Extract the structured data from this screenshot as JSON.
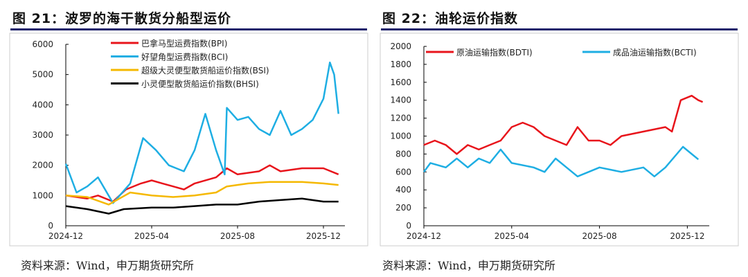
{
  "left": {
    "title": "图 21：波罗的海干散货分船型运价",
    "source": "资料来源：Wind，申万期货研究所"
  },
  "right": {
    "title": "图 22：油轮运价指数",
    "source": "资料来源：Wind，申万期货研究所"
  },
  "chart_data": [
    {
      "type": "line",
      "ylim": [
        0,
        6000
      ],
      "yticks": [
        "0",
        "1000",
        "2000",
        "3000",
        "4000",
        "5000",
        "6000"
      ],
      "xticks": [
        "2024-12",
        "2025-04",
        "2025-08",
        "2025-12"
      ],
      "x_unit": "months since 2024-12",
      "series": [
        {
          "name": "巴拿马型运费指数(BPI)",
          "color": "#e8141b",
          "x": [
            0,
            1,
            1.5,
            2.2,
            2.8,
            3.5,
            4,
            4.5,
            5,
            5.5,
            6,
            7,
            7.5,
            8,
            9,
            9.5,
            10,
            11,
            12,
            12.7
          ],
          "y": [
            1000,
            900,
            1000,
            800,
            1200,
            1400,
            1500,
            1400,
            1300,
            1200,
            1400,
            1600,
            1900,
            1700,
            1800,
            2000,
            1800,
            1900,
            1900,
            1700
          ]
        },
        {
          "name": "好望角型运费指数(BCI)",
          "color": "#1eaee3",
          "x": [
            0,
            0.5,
            1,
            1.5,
            2.2,
            3,
            3.6,
            4.2,
            4.8,
            5.5,
            6,
            6.5,
            7,
            7.4,
            7.5,
            8,
            8.5,
            9,
            9.5,
            10,
            10.5,
            11,
            11.5,
            12,
            12.3,
            12.5,
            12.7
          ],
          "y": [
            2050,
            1100,
            1300,
            1600,
            750,
            1400,
            2900,
            2500,
            2000,
            1800,
            2500,
            3700,
            2500,
            1700,
            3900,
            3500,
            3600,
            3200,
            3000,
            3800,
            3000,
            3200,
            3500,
            4200,
            5400,
            5000,
            3700
          ]
        },
        {
          "name": "超级大灵便型散货船运价指数(BSI)",
          "color": "#f5b800",
          "x": [
            0,
            1,
            2,
            2.5,
            3,
            4,
            5,
            6,
            7,
            7.5,
            8.5,
            9.5,
            11,
            12,
            12.7
          ],
          "y": [
            1000,
            950,
            700,
            900,
            1100,
            1000,
            950,
            1000,
            1100,
            1300,
            1400,
            1450,
            1450,
            1400,
            1350
          ]
        },
        {
          "name": "小灵便型散货船运价指数(BHSI)",
          "color": "#000000",
          "x": [
            0,
            1,
            2,
            2.7,
            4,
            5,
            6,
            7,
            8,
            9,
            10,
            11,
            12,
            12.7
          ],
          "y": [
            650,
            550,
            400,
            550,
            600,
            600,
            650,
            700,
            700,
            800,
            850,
            900,
            800,
            800
          ]
        }
      ]
    },
    {
      "type": "line",
      "ylim": [
        0,
        2000
      ],
      "yticks": [
        "0",
        "200",
        "400",
        "600",
        "800",
        "1000",
        "1200",
        "1400",
        "1600",
        "1800",
        "2000"
      ],
      "xticks": [
        "2024-12",
        "2025-04",
        "2025-08",
        "2025-12"
      ],
      "x_unit": "months since 2024-12",
      "series": [
        {
          "name": "原油运输指数(BDTI)",
          "color": "#e8141b",
          "x": [
            0,
            0.5,
            1,
            1.5,
            2,
            2.5,
            3,
            3.5,
            4,
            4.5,
            5,
            5.5,
            6,
            6.5,
            7,
            7.5,
            8,
            8.5,
            9,
            10,
            11,
            11.3,
            11.7,
            12.2,
            12.5,
            12.7
          ],
          "y": [
            900,
            950,
            900,
            800,
            900,
            850,
            900,
            950,
            1100,
            1150,
            1100,
            1000,
            950,
            900,
            1100,
            950,
            950,
            900,
            1000,
            1050,
            1100,
            1050,
            1400,
            1450,
            1400,
            1380
          ]
        },
        {
          "name": "成品油运输指数(BCTI)",
          "color": "#1eaee3",
          "x": [
            0,
            0.3,
            1,
            1.5,
            2,
            2.5,
            3,
            3.5,
            4,
            5,
            5.5,
            6,
            6.5,
            7,
            7.5,
            8,
            9,
            10,
            10.5,
            11,
            11.8,
            12.2,
            12.5
          ],
          "y": [
            600,
            700,
            650,
            750,
            650,
            750,
            700,
            850,
            700,
            650,
            600,
            750,
            650,
            550,
            600,
            650,
            600,
            650,
            550,
            650,
            880,
            800,
            740
          ]
        }
      ]
    }
  ]
}
